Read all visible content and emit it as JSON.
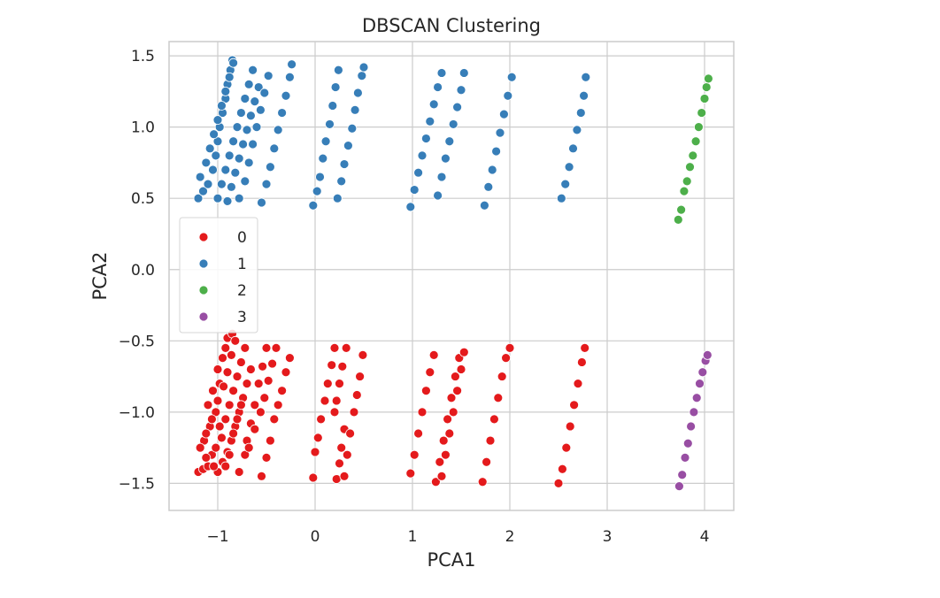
{
  "chart_data": {
    "type": "scatter",
    "title": "DBSCAN Clustering",
    "xlabel": "PCA1",
    "ylabel": "PCA2",
    "xlim": [
      -1.5,
      4.3
    ],
    "ylim": [
      -1.69,
      1.6
    ],
    "xticks": [
      -1,
      0,
      1,
      2,
      3,
      4
    ],
    "xtick_labels": [
      "−1",
      "0",
      "1",
      "2",
      "3",
      "4"
    ],
    "yticks": [
      -1.5,
      -1.0,
      -0.5,
      0.0,
      0.5,
      1.0,
      1.5
    ],
    "ytick_labels": [
      "−1.5",
      "−1.0",
      "−0.5",
      "0.0",
      "0.5",
      "1.0",
      "1.5"
    ],
    "grid": true,
    "legend_position": "center-left",
    "series": [
      {
        "name": "0",
        "color": "#e41a1c",
        "points": [
          [
            -1.2,
            -1.42
          ],
          [
            -1.15,
            -1.4
          ],
          [
            -1.1,
            -1.38
          ],
          [
            -1.06,
            -1.3
          ],
          [
            -1.14,
            -1.2
          ],
          [
            -1.08,
            -1.1
          ],
          [
            -1.02,
            -1.0
          ],
          [
            -1.1,
            -0.95
          ],
          [
            -1.05,
            -0.85
          ],
          [
            -0.98,
            -0.8
          ],
          [
            -1.0,
            -0.7
          ],
          [
            -0.95,
            -0.62
          ],
          [
            -0.92,
            -0.55
          ],
          [
            -0.9,
            -0.48
          ],
          [
            -0.85,
            -0.45
          ],
          [
            -1.12,
            -1.32
          ],
          [
            -1.02,
            -1.25
          ],
          [
            -0.96,
            -1.18
          ],
          [
            -0.92,
            -1.05
          ],
          [
            -0.88,
            -0.95
          ],
          [
            -0.84,
            -0.85
          ],
          [
            -0.8,
            -0.75
          ],
          [
            -0.76,
            -0.65
          ],
          [
            -0.72,
            -0.55
          ],
          [
            -1.18,
            -1.25
          ],
          [
            -1.12,
            -1.15
          ],
          [
            -1.06,
            -1.05
          ],
          [
            -1.0,
            -0.92
          ],
          [
            -0.94,
            -0.82
          ],
          [
            -0.9,
            -0.72
          ],
          [
            -0.86,
            -0.6
          ],
          [
            -0.82,
            -0.5
          ],
          [
            -1.0,
            -1.42
          ],
          [
            -0.95,
            -1.35
          ],
          [
            -0.9,
            -1.28
          ],
          [
            -0.86,
            -1.2
          ],
          [
            -0.82,
            -1.1
          ],
          [
            -0.78,
            -1.0
          ],
          [
            -0.74,
            -0.9
          ],
          [
            -0.7,
            -0.8
          ],
          [
            -0.66,
            -0.7
          ],
          [
            -1.04,
            -1.38
          ],
          [
            -0.98,
            -1.1
          ],
          [
            -0.92,
            -1.38
          ],
          [
            -0.88,
            -1.3
          ],
          [
            -0.84,
            -1.15
          ],
          [
            -0.8,
            -1.05
          ],
          [
            -0.76,
            -0.95
          ],
          [
            -0.7,
            -1.2
          ],
          [
            -0.66,
            -1.08
          ],
          [
            -0.62,
            -0.95
          ],
          [
            -0.58,
            -0.8
          ],
          [
            -0.54,
            -0.68
          ],
          [
            -0.5,
            -0.55
          ],
          [
            -0.78,
            -1.42
          ],
          [
            -0.72,
            -1.3
          ],
          [
            -0.68,
            -1.25
          ],
          [
            -0.62,
            -1.12
          ],
          [
            -0.56,
            -1.0
          ],
          [
            -0.52,
            -0.9
          ],
          [
            -0.48,
            -0.78
          ],
          [
            -0.44,
            -0.66
          ],
          [
            -0.4,
            -0.55
          ],
          [
            -0.55,
            -1.45
          ],
          [
            -0.5,
            -1.32
          ],
          [
            -0.46,
            -1.2
          ],
          [
            -0.42,
            -1.05
          ],
          [
            -0.38,
            -0.95
          ],
          [
            -0.34,
            -0.85
          ],
          [
            -0.3,
            -0.72
          ],
          [
            -0.26,
            -0.62
          ],
          [
            -0.02,
            -1.46
          ],
          [
            0.0,
            -1.28
          ],
          [
            0.03,
            -1.18
          ],
          [
            0.06,
            -1.05
          ],
          [
            0.1,
            -0.92
          ],
          [
            0.13,
            -0.8
          ],
          [
            0.17,
            -0.67
          ],
          [
            0.2,
            -0.55
          ],
          [
            0.22,
            -1.47
          ],
          [
            0.25,
            -1.36
          ],
          [
            0.27,
            -1.25
          ],
          [
            0.3,
            -1.12
          ],
          [
            0.2,
            -1.0
          ],
          [
            0.22,
            -0.92
          ],
          [
            0.25,
            -0.8
          ],
          [
            0.28,
            -0.68
          ],
          [
            0.32,
            -0.55
          ],
          [
            0.3,
            -1.45
          ],
          [
            0.33,
            -1.3
          ],
          [
            0.36,
            -1.15
          ],
          [
            0.4,
            -1.0
          ],
          [
            0.43,
            -0.88
          ],
          [
            0.46,
            -0.75
          ],
          [
            0.49,
            -0.6
          ],
          [
            0.98,
            -1.43
          ],
          [
            1.02,
            -1.3
          ],
          [
            1.06,
            -1.15
          ],
          [
            1.1,
            -1.0
          ],
          [
            1.14,
            -0.85
          ],
          [
            1.18,
            -0.72
          ],
          [
            1.22,
            -0.6
          ],
          [
            1.24,
            -1.49
          ],
          [
            1.28,
            -1.35
          ],
          [
            1.32,
            -1.2
          ],
          [
            1.36,
            -1.05
          ],
          [
            1.4,
            -0.9
          ],
          [
            1.44,
            -0.75
          ],
          [
            1.48,
            -0.62
          ],
          [
            1.3,
            -1.45
          ],
          [
            1.34,
            -1.3
          ],
          [
            1.38,
            -1.15
          ],
          [
            1.42,
            -1.0
          ],
          [
            1.46,
            -0.85
          ],
          [
            1.5,
            -0.7
          ],
          [
            1.53,
            -0.58
          ],
          [
            1.72,
            -1.49
          ],
          [
            1.76,
            -1.35
          ],
          [
            1.8,
            -1.2
          ],
          [
            1.84,
            -1.05
          ],
          [
            1.88,
            -0.9
          ],
          [
            1.92,
            -0.75
          ],
          [
            1.96,
            -0.62
          ],
          [
            2.0,
            -0.55
          ],
          [
            2.5,
            -1.5
          ],
          [
            2.54,
            -1.4
          ],
          [
            2.58,
            -1.25
          ],
          [
            2.62,
            -1.1
          ],
          [
            2.66,
            -0.95
          ],
          [
            2.7,
            -0.8
          ],
          [
            2.74,
            -0.65
          ],
          [
            2.77,
            -0.55
          ]
        ]
      },
      {
        "name": "1",
        "color": "#377eb8",
        "points": [
          [
            -1.2,
            0.5
          ],
          [
            -1.15,
            0.55
          ],
          [
            -1.1,
            0.6
          ],
          [
            -1.05,
            0.7
          ],
          [
            -1.02,
            0.8
          ],
          [
            -1.0,
            0.9
          ],
          [
            -0.98,
            1.0
          ],
          [
            -0.95,
            1.1
          ],
          [
            -0.92,
            1.2
          ],
          [
            -0.9,
            1.3
          ],
          [
            -0.87,
            1.4
          ],
          [
            -0.85,
            1.47
          ],
          [
            -1.18,
            0.65
          ],
          [
            -1.12,
            0.75
          ],
          [
            -1.08,
            0.85
          ],
          [
            -1.04,
            0.95
          ],
          [
            -1.0,
            1.05
          ],
          [
            -0.96,
            1.15
          ],
          [
            -0.92,
            1.25
          ],
          [
            -0.88,
            1.35
          ],
          [
            -0.84,
            1.45
          ],
          [
            -1.0,
            0.5
          ],
          [
            -0.96,
            0.6
          ],
          [
            -0.92,
            0.7
          ],
          [
            -0.88,
            0.8
          ],
          [
            -0.84,
            0.9
          ],
          [
            -0.8,
            1.0
          ],
          [
            -0.76,
            1.1
          ],
          [
            -0.72,
            1.2
          ],
          [
            -0.68,
            1.3
          ],
          [
            -0.64,
            1.4
          ],
          [
            -0.9,
            0.48
          ],
          [
            -0.86,
            0.58
          ],
          [
            -0.82,
            0.68
          ],
          [
            -0.78,
            0.78
          ],
          [
            -0.74,
            0.88
          ],
          [
            -0.7,
            0.98
          ],
          [
            -0.66,
            1.08
          ],
          [
            -0.62,
            1.18
          ],
          [
            -0.58,
            1.28
          ],
          [
            -0.78,
            0.5
          ],
          [
            -0.72,
            0.62
          ],
          [
            -0.68,
            0.75
          ],
          [
            -0.64,
            0.88
          ],
          [
            -0.6,
            1.0
          ],
          [
            -0.56,
            1.12
          ],
          [
            -0.52,
            1.24
          ],
          [
            -0.48,
            1.36
          ],
          [
            -0.55,
            0.47
          ],
          [
            -0.5,
            0.6
          ],
          [
            -0.46,
            0.72
          ],
          [
            -0.42,
            0.85
          ],
          [
            -0.38,
            0.98
          ],
          [
            -0.34,
            1.1
          ],
          [
            -0.3,
            1.22
          ],
          [
            -0.26,
            1.35
          ],
          [
            -0.24,
            1.44
          ],
          [
            -0.02,
            0.45
          ],
          [
            0.02,
            0.55
          ],
          [
            0.05,
            0.65
          ],
          [
            0.08,
            0.78
          ],
          [
            0.11,
            0.9
          ],
          [
            0.15,
            1.02
          ],
          [
            0.18,
            1.15
          ],
          [
            0.21,
            1.28
          ],
          [
            0.24,
            1.4
          ],
          [
            0.23,
            0.5
          ],
          [
            0.27,
            0.62
          ],
          [
            0.3,
            0.74
          ],
          [
            0.34,
            0.87
          ],
          [
            0.38,
            0.99
          ],
          [
            0.41,
            1.12
          ],
          [
            0.44,
            1.24
          ],
          [
            0.48,
            1.36
          ],
          [
            0.5,
            1.42
          ],
          [
            0.98,
            0.44
          ],
          [
            1.02,
            0.56
          ],
          [
            1.06,
            0.68
          ],
          [
            1.1,
            0.8
          ],
          [
            1.14,
            0.92
          ],
          [
            1.18,
            1.04
          ],
          [
            1.22,
            1.16
          ],
          [
            1.26,
            1.28
          ],
          [
            1.3,
            1.38
          ],
          [
            1.26,
            0.52
          ],
          [
            1.3,
            0.65
          ],
          [
            1.34,
            0.78
          ],
          [
            1.38,
            0.9
          ],
          [
            1.42,
            1.02
          ],
          [
            1.46,
            1.14
          ],
          [
            1.5,
            1.26
          ],
          [
            1.53,
            1.38
          ],
          [
            1.74,
            0.45
          ],
          [
            1.78,
            0.58
          ],
          [
            1.82,
            0.7
          ],
          [
            1.86,
            0.83
          ],
          [
            1.9,
            0.96
          ],
          [
            1.94,
            1.09
          ],
          [
            1.98,
            1.22
          ],
          [
            2.02,
            1.35
          ],
          [
            2.53,
            0.5
          ],
          [
            2.57,
            0.6
          ],
          [
            2.61,
            0.72
          ],
          [
            2.65,
            0.85
          ],
          [
            2.69,
            0.98
          ],
          [
            2.73,
            1.1
          ],
          [
            2.76,
            1.22
          ],
          [
            2.78,
            1.35
          ]
        ]
      },
      {
        "name": "2",
        "color": "#4daf4a",
        "points": [
          [
            3.73,
            0.35
          ],
          [
            3.76,
            0.42
          ],
          [
            3.79,
            0.55
          ],
          [
            3.82,
            0.62
          ],
          [
            3.85,
            0.72
          ],
          [
            3.88,
            0.8
          ],
          [
            3.91,
            0.9
          ],
          [
            3.94,
            1.0
          ],
          [
            3.97,
            1.1
          ],
          [
            4.0,
            1.2
          ],
          [
            4.02,
            1.28
          ],
          [
            4.04,
            1.34
          ]
        ]
      },
      {
        "name": "3",
        "color": "#984ea3",
        "points": [
          [
            3.74,
            -1.52
          ],
          [
            3.77,
            -1.44
          ],
          [
            3.8,
            -1.32
          ],
          [
            3.83,
            -1.22
          ],
          [
            3.86,
            -1.1
          ],
          [
            3.89,
            -1.0
          ],
          [
            3.92,
            -0.9
          ],
          [
            3.95,
            -0.8
          ],
          [
            3.98,
            -0.72
          ],
          [
            4.01,
            -0.64
          ],
          [
            4.03,
            -0.6
          ]
        ]
      }
    ]
  }
}
